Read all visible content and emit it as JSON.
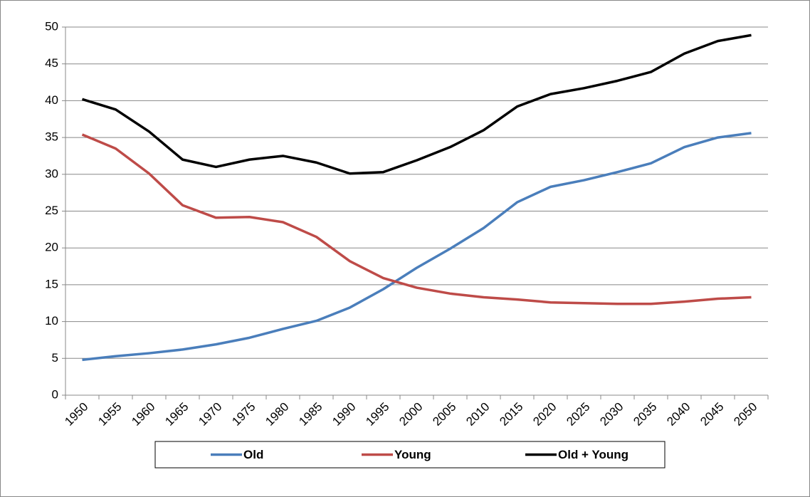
{
  "chart_data": {
    "type": "line",
    "categories": [
      "1950",
      "1955",
      "1960",
      "1965",
      "1970",
      "1975",
      "1980",
      "1985",
      "1990",
      "1995",
      "2000",
      "2005",
      "2010",
      "2015",
      "2020",
      "2025",
      "2030",
      "2035",
      "2040",
      "2045",
      "2050"
    ],
    "series": [
      {
        "name": "Old",
        "color": "#4a7ebb",
        "values": [
          4.8,
          5.3,
          5.7,
          6.2,
          6.9,
          7.8,
          9.0,
          10.1,
          11.9,
          14.4,
          17.3,
          19.9,
          22.7,
          26.2,
          28.3,
          29.2,
          30.3,
          31.5,
          33.7,
          35.0,
          35.6
        ]
      },
      {
        "name": "Young",
        "color": "#be4b48",
        "values": [
          35.4,
          33.5,
          30.1,
          25.8,
          24.1,
          24.2,
          23.5,
          21.5,
          18.2,
          15.9,
          14.6,
          13.8,
          13.3,
          13.0,
          12.6,
          12.5,
          12.4,
          12.4,
          12.7,
          13.1,
          13.3
        ]
      },
      {
        "name": "Old + Young",
        "color": "#000000",
        "values": [
          40.2,
          38.8,
          35.8,
          32.0,
          31.0,
          32.0,
          32.5,
          31.6,
          30.1,
          30.3,
          31.9,
          33.7,
          36.0,
          39.2,
          40.9,
          41.7,
          42.7,
          43.9,
          46.4,
          48.1,
          48.9
        ]
      }
    ],
    "ylim": [
      0,
      50
    ],
    "yticks": [
      0,
      5,
      10,
      15,
      20,
      25,
      30,
      35,
      40,
      45,
      50
    ],
    "grid": true,
    "legend": "bottom"
  }
}
